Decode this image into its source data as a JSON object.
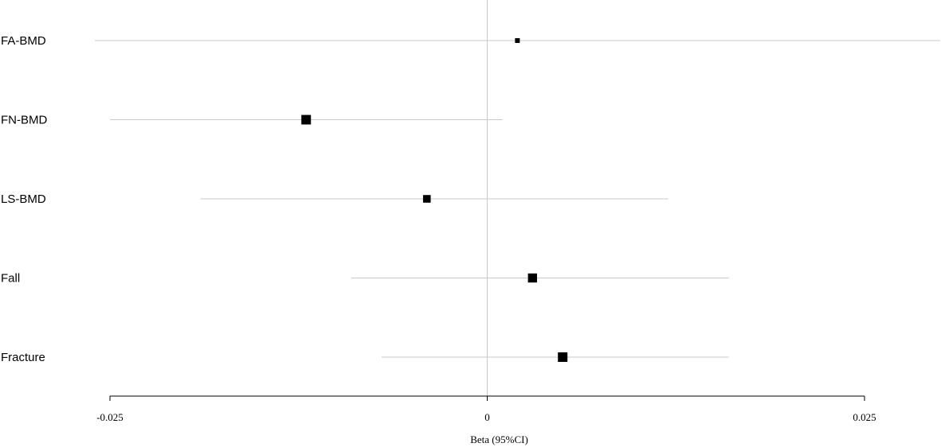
{
  "chart_data": {
    "type": "forest",
    "xlabel": "Beta (95%CI)",
    "xlim": [
      -0.025,
      0.025
    ],
    "xticks": [
      {
        "value": -0.025,
        "label": "-0.025"
      },
      {
        "value": 0,
        "label": "0"
      },
      {
        "value": 0.025,
        "label": "0.025"
      }
    ],
    "reference_line": 0,
    "grid": false,
    "marker_color": "#000000",
    "ci_color": "#c8c8c8",
    "rows": [
      {
        "label": "FA-BMD",
        "beta": 0.002,
        "ci_low": -0.026,
        "ci_high": 0.03,
        "weight": 0.45
      },
      {
        "label": "FN-BMD",
        "beta": -0.012,
        "ci_low": -0.025,
        "ci_high": 0.001,
        "weight": 1.0
      },
      {
        "label": "LS-BMD",
        "beta": -0.004,
        "ci_low": -0.019,
        "ci_high": 0.012,
        "weight": 0.8
      },
      {
        "label": "Fall",
        "beta": 0.003,
        "ci_low": -0.009,
        "ci_high": 0.016,
        "weight": 0.95
      },
      {
        "label": "Fracture",
        "beta": 0.005,
        "ci_low": -0.007,
        "ci_high": 0.016,
        "weight": 1.0
      }
    ]
  }
}
